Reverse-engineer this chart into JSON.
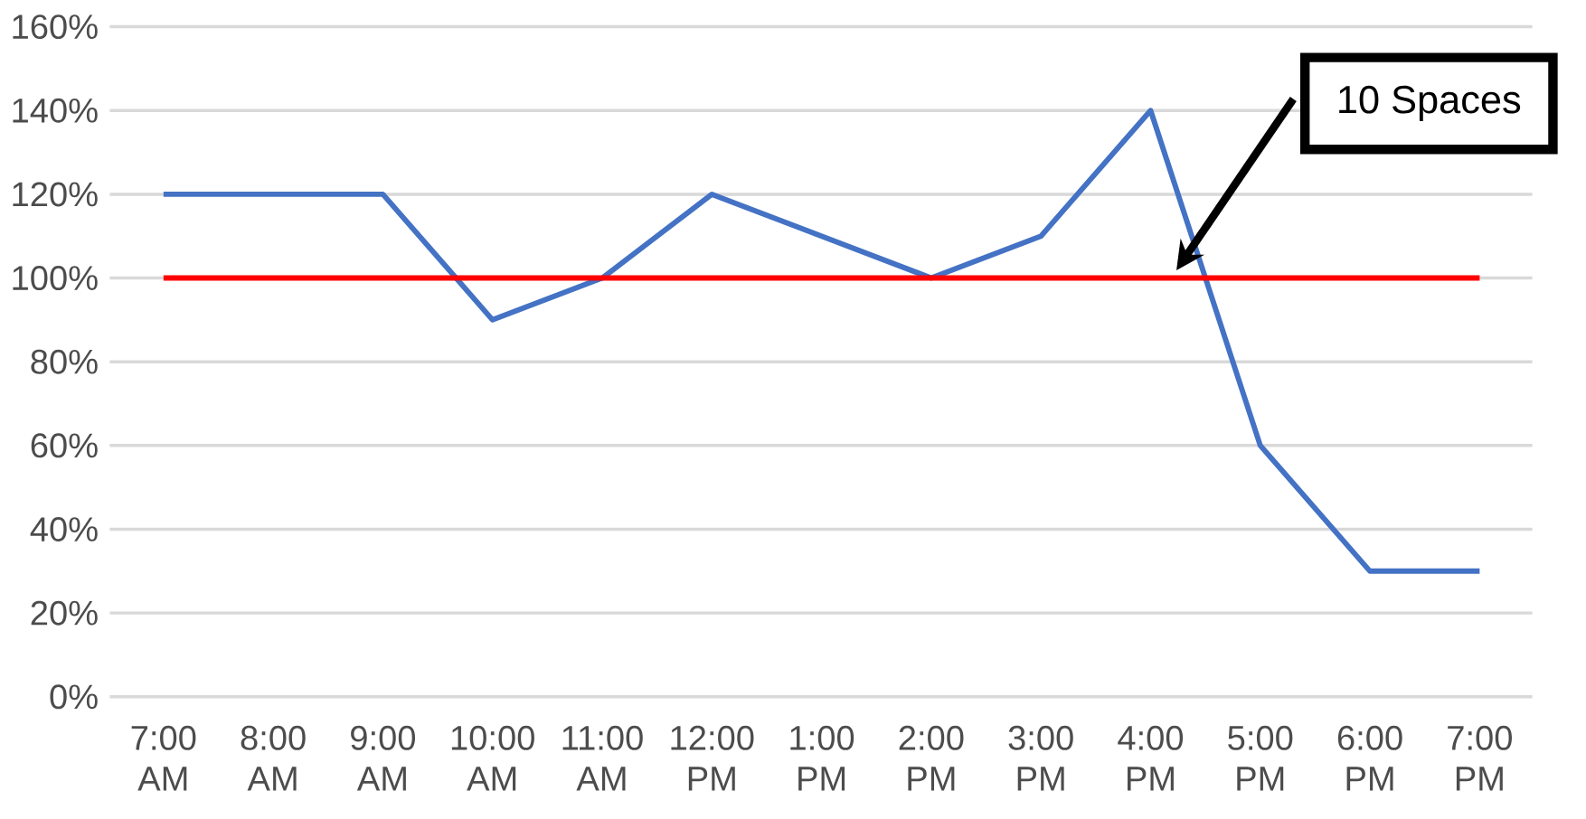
{
  "chart_data": {
    "type": "line",
    "categories": [
      "7:00 AM",
      "8:00 AM",
      "9:00 AM",
      "10:00 AM",
      "11:00 AM",
      "12:00 PM",
      "1:00 PM",
      "2:00 PM",
      "3:00 PM",
      "4:00 PM",
      "5:00 PM",
      "6:00 PM",
      "7:00 PM"
    ],
    "series": [
      {
        "color": "#4472c4",
        "values": [
          120,
          120,
          120,
          90,
          100,
          120,
          110,
          100,
          110,
          140,
          60,
          30,
          30
        ]
      },
      {
        "color": "#ff0000",
        "values": [
          100,
          100,
          100,
          100,
          100,
          100,
          100,
          100,
          100,
          100,
          100,
          100,
          100
        ]
      }
    ],
    "ylim": [
      0,
      160
    ],
    "yticks": [
      {
        "value": 0,
        "label": "0%"
      },
      {
        "value": 20,
        "label": "20%"
      },
      {
        "value": 40,
        "label": "40%"
      },
      {
        "value": 60,
        "label": "60%"
      },
      {
        "value": 80,
        "label": "80%"
      },
      {
        "value": 100,
        "label": "100%"
      },
      {
        "value": 120,
        "label": "120%"
      },
      {
        "value": 140,
        "label": "140%"
      },
      {
        "value": 160,
        "label": "160%"
      }
    ],
    "grid": "y",
    "marker": "none",
    "line_style": "solid",
    "annotations": [
      "10 Spaces"
    ]
  }
}
